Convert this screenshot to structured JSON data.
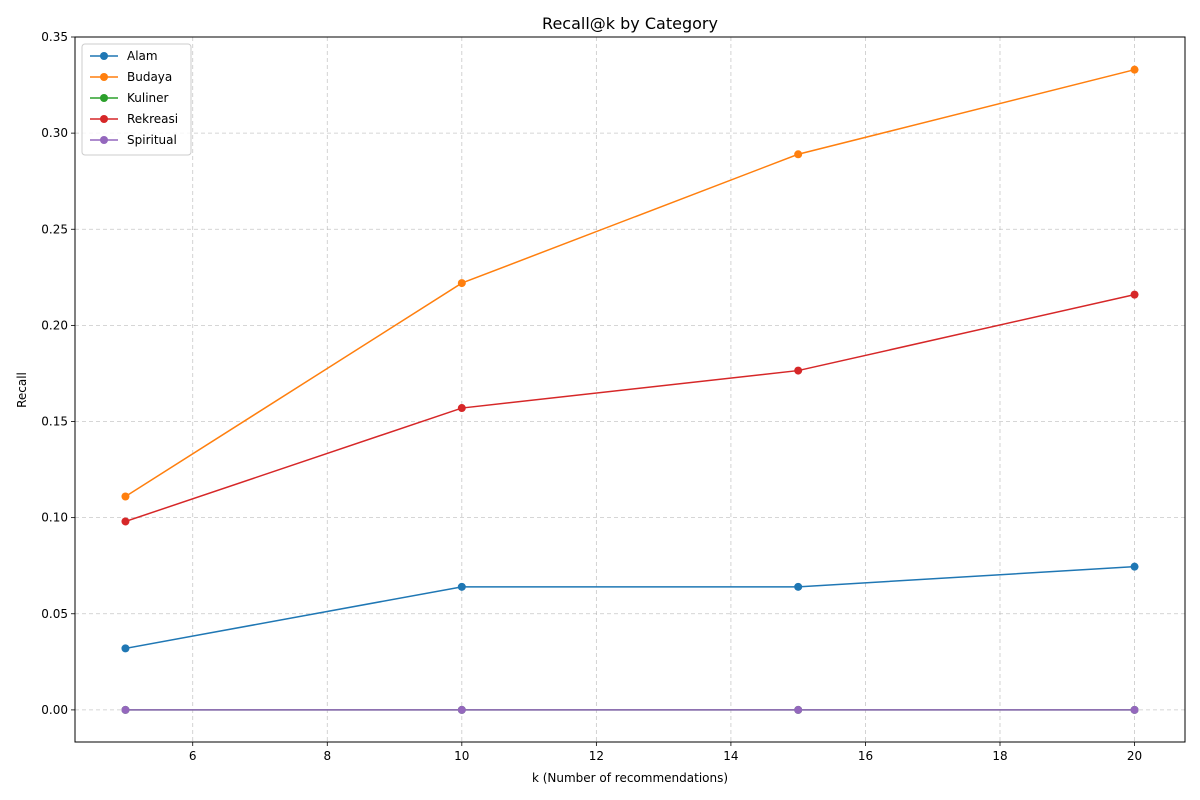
{
  "chart_data": {
    "type": "line",
    "title": "Recall@k by Category",
    "xlabel": "k (Number of recommendations)",
    "ylabel": "Recall",
    "x": [
      5,
      10,
      15,
      20
    ],
    "xlim": [
      4.25,
      20.75
    ],
    "ylim": [
      -0.0167,
      0.35
    ],
    "xticks": [
      6,
      8,
      10,
      12,
      14,
      16,
      18,
      20
    ],
    "yticks": [
      0.0,
      0.05,
      0.1,
      0.15,
      0.2,
      0.25,
      0.3,
      0.35
    ],
    "ytick_labels": [
      "0.00",
      "0.05",
      "0.10",
      "0.15",
      "0.20",
      "0.25",
      "0.30",
      "0.35"
    ],
    "grid": true,
    "legend_position": "top-left",
    "series": [
      {
        "name": "Alam",
        "color": "#1f77b4",
        "values": [
          0.032,
          0.064,
          0.064,
          0.0745
        ]
      },
      {
        "name": "Budaya",
        "color": "#ff7f0e",
        "values": [
          0.111,
          0.222,
          0.289,
          0.333
        ]
      },
      {
        "name": "Kuliner",
        "color": "#2ca02c",
        "values": [
          0.0,
          0.0,
          0.0,
          0.0
        ]
      },
      {
        "name": "Rekreasi",
        "color": "#d62728",
        "values": [
          0.098,
          0.157,
          0.1765,
          0.216
        ]
      },
      {
        "name": "Spiritual",
        "color": "#9467bd",
        "values": [
          0.0,
          0.0,
          0.0,
          0.0
        ]
      }
    ]
  }
}
